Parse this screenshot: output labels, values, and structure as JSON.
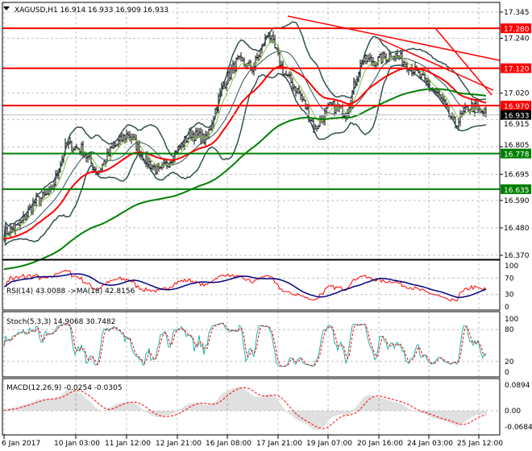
{
  "chart_data": {
    "type": "bar",
    "header": {
      "symbol": "XAGUSD,H1",
      "open": "16.914",
      "high": "16.933",
      "low": "16.909",
      "close": "16.933"
    },
    "price_axis": {
      "ticks": [
        "17.345",
        "17.240",
        "17.020",
        "16.915",
        "16.805",
        "16.695",
        "16.590",
        "16.480",
        "16.370"
      ],
      "ylim": [
        16.37,
        17.345
      ]
    },
    "time_axis": {
      "ticks": [
        "6 Jan 2017",
        "10 Jan 03:00",
        "11 Jan 12:00",
        "12 Jan 21:00",
        "16 Jan 08:00",
        "17 Jan 21:00",
        "19 Jan 07:00",
        "20 Jan 16:00",
        "24 Jan 03:00",
        "25 Jan 12:00"
      ]
    },
    "close_keypoints": [
      16.457,
      16.49,
      16.586,
      16.618,
      16.812,
      16.796,
      16.7,
      16.8,
      16.86,
      16.76,
      16.7,
      16.78,
      16.86,
      16.83,
      17.04,
      17.15,
      17.12,
      17.264,
      17.1,
      17.02,
      16.877,
      16.97,
      16.94,
      17.15,
      17.15,
      17.18,
      17.135,
      17.07,
      17.006,
      16.893,
      16.97,
      16.933
    ],
    "levels": [
      {
        "price": 17.28,
        "label": "17.280",
        "color": "#ff0000"
      },
      {
        "price": 17.12,
        "label": "17.120",
        "color": "#ff0000"
      },
      {
        "price": 16.97,
        "label": "16.970",
        "color": "#ff0000"
      },
      {
        "price": 16.778,
        "label": "16.778",
        "color": "#008000"
      },
      {
        "price": 16.635,
        "label": "16.635",
        "color": "#008000"
      }
    ],
    "current_price": {
      "label": "16.933",
      "color": "#000000"
    },
    "rsi": {
      "title": "RSI(14) 43.0088  ->MA(18) 42.8156",
      "ticks": [
        "100",
        "70",
        "30",
        "0"
      ],
      "levels": [
        70,
        30
      ]
    },
    "stoch": {
      "title": "Stoch(5,3,3) 14.9068 30.7482",
      "ticks": [
        "100",
        "80",
        "20",
        "0"
      ],
      "levels": [
        80,
        20
      ]
    },
    "macd": {
      "title": "MACD(12,26,9) -0.0254 -0.0305",
      "ticks": [
        "0.0894",
        "0.00",
        "-0.0684"
      ]
    },
    "colors": {
      "bars": "#000000",
      "ma_fast": "#ff0000",
      "ma_slow": "#008000",
      "bands": "#2f4f4f",
      "rsi": "#ff0000",
      "rsi_ma": "#000080",
      "stoch_main": "#20b2aa",
      "stoch_signal": "#ff0000",
      "macd_hist": "#c0c0c0",
      "macd_signal": "#ff0000"
    }
  }
}
